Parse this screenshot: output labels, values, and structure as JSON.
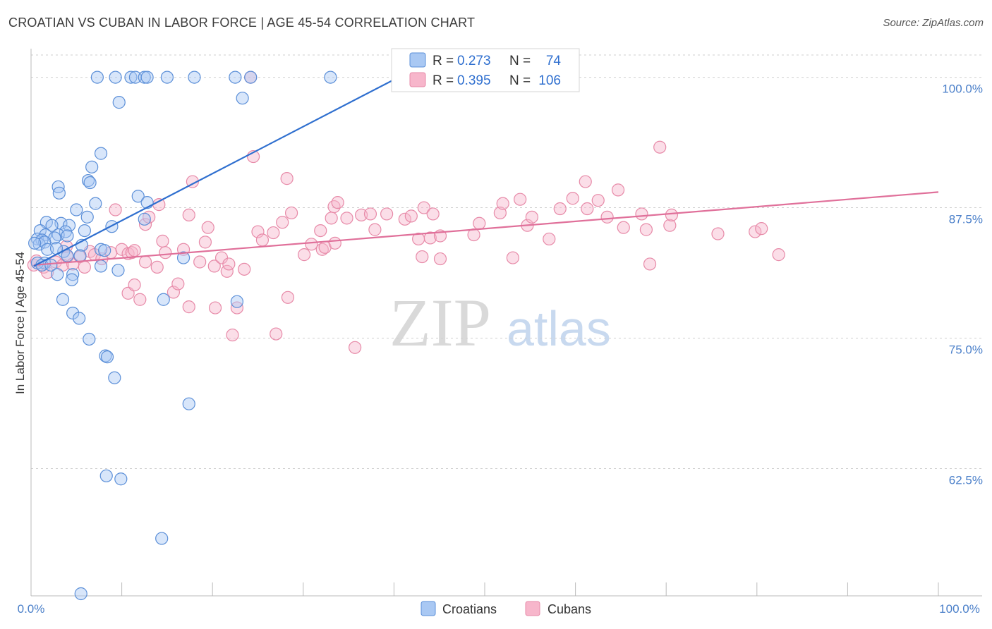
{
  "header": {
    "title": "CROATIAN VS CUBAN IN LABOR FORCE | AGE 45-54 CORRELATION CHART",
    "source": "Source: ZipAtlas.com"
  },
  "watermark": {
    "zip": "ZIP",
    "atlas": "atlas"
  },
  "legend": {
    "r_label": "R =",
    "n_label": "N =",
    "rows": [
      {
        "series": "Croatians",
        "r": "0.273",
        "n": "74"
      },
      {
        "series": "Cubans",
        "r": "0.395",
        "n": "106"
      }
    ]
  },
  "colors": {
    "croatians_fill": "#a9c8f3",
    "croatians_stroke": "#5b8fd8",
    "croatians_line": "#2f6fcf",
    "cubans_fill": "#f7b6cb",
    "cubans_stroke": "#e78aa8",
    "cubans_line": "#e0709a",
    "grid": "#cfcfcf",
    "axis_text": "#4a7fc9"
  },
  "chart_data": {
    "type": "scatter",
    "title": "CROATIAN VS CUBAN IN LABOR FORCE | AGE 45-54 CORRELATION CHART",
    "xlabel": "",
    "ylabel": "In Labor Force | Age 45-54",
    "xlim": [
      0,
      100
    ],
    "ylim": [
      50.5,
      102
    ],
    "x_tick_labels": [
      "0.0%",
      "100.0%"
    ],
    "y_ticks": [
      62.5,
      75.0,
      87.5,
      100.0
    ],
    "y_tick_labels": [
      "62.5%",
      "75.0%",
      "87.5%",
      "100.0%"
    ],
    "grid": "horizontal dashed",
    "legend_position": "top-center",
    "series": [
      {
        "name": "Croatians",
        "r": 0.273,
        "n": 74,
        "trend": {
          "x": [
            0.3,
            40.5
          ],
          "y": [
            81.9,
            100.0
          ]
        },
        "points": [
          [
            7.3,
            100
          ],
          [
            9.3,
            100
          ],
          [
            11.0,
            100
          ],
          [
            11.5,
            100
          ],
          [
            12.5,
            100
          ],
          [
            12.8,
            100
          ],
          [
            15.0,
            100
          ],
          [
            18.0,
            100
          ],
          [
            22.5,
            100
          ],
          [
            24.2,
            100
          ],
          [
            33.0,
            100
          ],
          [
            9.7,
            97.6
          ],
          [
            23.3,
            98.0
          ],
          [
            7.7,
            92.7
          ],
          [
            6.7,
            91.4
          ],
          [
            6.3,
            90.1
          ],
          [
            6.5,
            89.9
          ],
          [
            3.0,
            89.5
          ],
          [
            3.1,
            88.9
          ],
          [
            11.8,
            88.6
          ],
          [
            7.1,
            87.9
          ],
          [
            12.8,
            88.0
          ],
          [
            5.0,
            87.3
          ],
          [
            6.2,
            86.6
          ],
          [
            12.5,
            86.4
          ],
          [
            1.7,
            86.1
          ],
          [
            3.3,
            86.0
          ],
          [
            2.3,
            85.8
          ],
          [
            4.2,
            85.8
          ],
          [
            3.8,
            85.2
          ],
          [
            1.0,
            85.3
          ],
          [
            5.9,
            85.3
          ],
          [
            8.9,
            85.7
          ],
          [
            3.0,
            84.9
          ],
          [
            1.6,
            84.9
          ],
          [
            4.0,
            84.8
          ],
          [
            2.6,
            84.6
          ],
          [
            0.7,
            84.5
          ],
          [
            1.2,
            84.4
          ],
          [
            0.9,
            84.0
          ],
          [
            1.5,
            84.2
          ],
          [
            0.4,
            84.1
          ],
          [
            3.6,
            83.3
          ],
          [
            1.8,
            83.5
          ],
          [
            5.6,
            83.9
          ],
          [
            7.7,
            83.5
          ],
          [
            8.1,
            83.4
          ],
          [
            2.8,
            83.6
          ],
          [
            5.4,
            82.9
          ],
          [
            4.0,
            82.9
          ],
          [
            16.8,
            82.7
          ],
          [
            1.5,
            82.2
          ],
          [
            0.7,
            82.2
          ],
          [
            1.2,
            82.0
          ],
          [
            2.2,
            82.0
          ],
          [
            7.7,
            81.9
          ],
          [
            9.6,
            81.5
          ],
          [
            2.9,
            81.1
          ],
          [
            4.6,
            81.1
          ],
          [
            4.5,
            80.6
          ],
          [
            3.5,
            78.7
          ],
          [
            14.6,
            78.7
          ],
          [
            22.7,
            78.5
          ],
          [
            4.6,
            77.4
          ],
          [
            5.3,
            76.9
          ],
          [
            6.4,
            74.9
          ],
          [
            8.2,
            73.3
          ],
          [
            8.4,
            73.2
          ],
          [
            9.2,
            71.2
          ],
          [
            17.4,
            68.7
          ],
          [
            8.3,
            61.8
          ],
          [
            9.9,
            61.5
          ],
          [
            14.4,
            55.8
          ],
          [
            5.5,
            50.5
          ]
        ]
      },
      {
        "name": "Cubans",
        "r": 0.395,
        "n": 106,
        "trend": {
          "x": [
            0.3,
            100
          ],
          "y": [
            82.0,
            89.0
          ]
        },
        "points": [
          [
            0.3,
            82.0
          ],
          [
            0.6,
            82.4
          ],
          [
            1.4,
            81.8
          ],
          [
            1.8,
            81.3
          ],
          [
            2.7,
            82.3
          ],
          [
            3.5,
            82.0
          ],
          [
            4.0,
            82.8
          ],
          [
            4.6,
            82.1
          ],
          [
            5.4,
            82.8
          ],
          [
            5.9,
            81.8
          ],
          [
            3.9,
            83.8
          ],
          [
            6.5,
            83.3
          ],
          [
            7.0,
            83.0
          ],
          [
            7.8,
            82.6
          ],
          [
            8.8,
            83.2
          ],
          [
            10.0,
            83.5
          ],
          [
            10.7,
            83.1
          ],
          [
            11.1,
            83.2
          ],
          [
            11.4,
            83.4
          ],
          [
            9.3,
            87.3
          ],
          [
            10.7,
            79.3
          ],
          [
            11.4,
            80.1
          ],
          [
            12.0,
            78.7
          ],
          [
            12.6,
            85.9
          ],
          [
            13.0,
            86.6
          ],
          [
            12.6,
            82.3
          ],
          [
            13.9,
            81.8
          ],
          [
            14.1,
            87.8
          ],
          [
            14.5,
            84.3
          ],
          [
            14.8,
            83.2
          ],
          [
            15.7,
            79.4
          ],
          [
            16.2,
            80.2
          ],
          [
            16.8,
            83.5
          ],
          [
            17.4,
            78.0
          ],
          [
            17.4,
            86.8
          ],
          [
            17.8,
            90.0
          ],
          [
            18.6,
            82.3
          ],
          [
            19.2,
            84.2
          ],
          [
            19.5,
            85.6
          ],
          [
            20.2,
            81.9
          ],
          [
            20.3,
            77.9
          ],
          [
            21.0,
            82.7
          ],
          [
            21.6,
            81.4
          ],
          [
            21.8,
            82.1
          ],
          [
            22.2,
            75.3
          ],
          [
            22.7,
            77.9
          ],
          [
            23.5,
            81.6
          ],
          [
            24.2,
            100
          ],
          [
            24.5,
            92.4
          ],
          [
            25.0,
            85.2
          ],
          [
            25.5,
            84.4
          ],
          [
            26.7,
            85.1
          ],
          [
            27.0,
            75.4
          ],
          [
            27.7,
            86.1
          ],
          [
            28.2,
            90.3
          ],
          [
            28.3,
            78.9
          ],
          [
            28.7,
            87.0
          ],
          [
            30.1,
            83.0
          ],
          [
            30.9,
            84.0
          ],
          [
            31.9,
            85.3
          ],
          [
            32.1,
            83.5
          ],
          [
            32.4,
            83.7
          ],
          [
            33.1,
            86.5
          ],
          [
            33.4,
            87.6
          ],
          [
            33.5,
            84.1
          ],
          [
            33.8,
            88.0
          ],
          [
            34.8,
            86.5
          ],
          [
            35.7,
            74.1
          ],
          [
            36.4,
            86.8
          ],
          [
            37.4,
            86.9
          ],
          [
            37.9,
            85.4
          ],
          [
            39.2,
            86.9
          ],
          [
            41.2,
            86.4
          ],
          [
            41.9,
            86.7
          ],
          [
            42.7,
            84.5
          ],
          [
            43.1,
            82.8
          ],
          [
            43.3,
            87.5
          ],
          [
            44.0,
            84.6
          ],
          [
            44.3,
            86.9
          ],
          [
            45.1,
            82.6
          ],
          [
            45.1,
            84.8
          ],
          [
            48.8,
            84.9
          ],
          [
            49.4,
            86.0
          ],
          [
            51.7,
            87.0
          ],
          [
            52.0,
            87.9
          ],
          [
            53.1,
            82.7
          ],
          [
            53.9,
            88.3
          ],
          [
            54.7,
            85.8
          ],
          [
            55.2,
            86.6
          ],
          [
            57.1,
            84.5
          ],
          [
            58.3,
            87.4
          ],
          [
            59.7,
            88.4
          ],
          [
            61.1,
            90.0
          ],
          [
            61.3,
            87.4
          ],
          [
            62.5,
            88.2
          ],
          [
            63.5,
            86.6
          ],
          [
            64.7,
            89.2
          ],
          [
            65.3,
            85.6
          ],
          [
            67.3,
            86.9
          ],
          [
            67.8,
            85.4
          ],
          [
            68.2,
            82.1
          ],
          [
            69.3,
            93.3
          ],
          [
            70.4,
            85.8
          ],
          [
            70.6,
            86.8
          ],
          [
            75.7,
            85.0
          ],
          [
            79.8,
            85.2
          ],
          [
            80.5,
            85.5
          ],
          [
            82.4,
            83.0
          ]
        ]
      }
    ]
  },
  "bottom_legend": [
    "Croatians",
    "Cubans"
  ]
}
